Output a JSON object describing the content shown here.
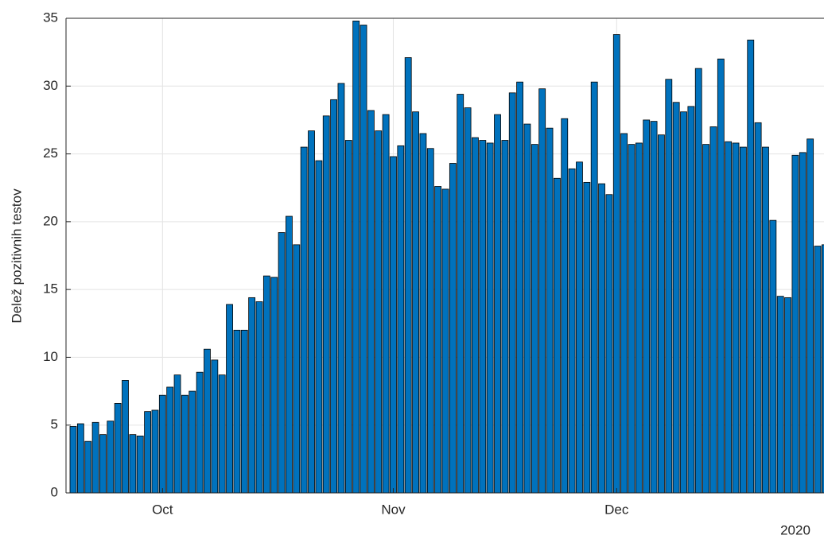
{
  "chart_data": {
    "type": "bar",
    "y_label": "Delež pozitivnih testov",
    "x_secondary_label": "2020",
    "categories": [
      null,
      null,
      null,
      null,
      null,
      null,
      null,
      null,
      null,
      null,
      null,
      null,
      "Oct",
      null,
      null,
      null,
      null,
      null,
      null,
      null,
      null,
      null,
      null,
      null,
      null,
      null,
      null,
      null,
      null,
      null,
      null,
      null,
      null,
      null,
      null,
      null,
      null,
      null,
      null,
      null,
      null,
      null,
      null,
      "Nov",
      null,
      null,
      null,
      null,
      null,
      null,
      null,
      null,
      null,
      null,
      null,
      null,
      null,
      null,
      null,
      null,
      null,
      null,
      null,
      null,
      null,
      null,
      null,
      null,
      null,
      null,
      null,
      null,
      null,
      "Dec",
      null,
      null,
      null,
      null,
      null,
      null,
      null,
      null,
      null,
      null,
      null,
      null,
      null,
      null,
      null,
      null,
      null,
      null,
      null,
      null,
      null,
      null,
      null,
      null,
      null,
      null,
      null,
      null
    ],
    "values": [
      4.9,
      5.1,
      3.8,
      5.2,
      4.3,
      5.3,
      6.6,
      8.3,
      4.3,
      4.2,
      6.0,
      6.1,
      7.2,
      7.8,
      8.7,
      7.2,
      7.5,
      8.9,
      10.6,
      9.8,
      8.7,
      13.9,
      12.0,
      12.0,
      14.4,
      14.1,
      16.0,
      15.9,
      19.2,
      20.4,
      18.3,
      25.5,
      26.7,
      24.5,
      27.8,
      29.0,
      30.2,
      26.0,
      34.8,
      34.5,
      28.2,
      26.7,
      27.9,
      24.8,
      25.6,
      32.1,
      28.1,
      26.5,
      25.4,
      22.6,
      22.4,
      24.3,
      29.4,
      28.4,
      26.2,
      26.0,
      25.8,
      27.9,
      26.0,
      29.5,
      30.3,
      27.2,
      25.7,
      29.8,
      26.9,
      23.2,
      27.6,
      23.9,
      24.4,
      22.9,
      30.3,
      22.8,
      22.0,
      33.8,
      26.5,
      25.7,
      25.8,
      27.5,
      27.4,
      26.4,
      30.5,
      28.8,
      28.1,
      28.5,
      31.3,
      25.7,
      27.0,
      32.0,
      25.9,
      25.8,
      25.5,
      33.4,
      27.3,
      25.5,
      20.1,
      14.5,
      14.4,
      24.9,
      25.1,
      26.1,
      18.2,
      18.3
    ],
    "color": "#0072bd",
    "edge_color": "#000000",
    "ylim": [
      0,
      35
    ],
    "yticks": [
      0,
      5,
      10,
      15,
      20,
      25,
      30,
      35
    ],
    "grid": true
  }
}
